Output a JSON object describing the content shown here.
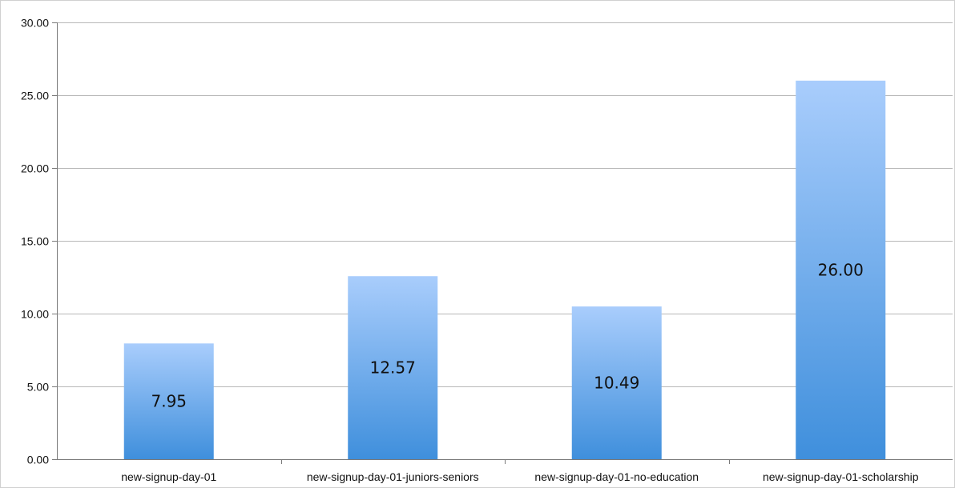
{
  "chart_data": {
    "type": "bar",
    "title": "",
    "xlabel": "",
    "ylabel": "",
    "categories": [
      "new-signup-day-01",
      "new-signup-day-01-juniors-seniors",
      "new-signup-day-01-no-education",
      "new-signup-day-01-scholarship"
    ],
    "values": [
      7.95,
      12.57,
      10.49,
      26.0
    ],
    "data_labels": [
      "7.95",
      "12.57",
      "10.49",
      "26.00"
    ],
    "ylim": [
      0,
      30
    ],
    "y_ticks": [
      0,
      5,
      10,
      15,
      20,
      25,
      30
    ],
    "y_tick_labels": [
      "0.00",
      "5.00",
      "10.00",
      "15.00",
      "20.00",
      "25.00",
      "30.00"
    ],
    "grid": true,
    "legend": "none",
    "colors": {
      "bar_top": "#a9cdfc",
      "bar_bottom": "#3f8fdc",
      "gridline": "#b8b8b8",
      "axis": "#7a7a7a"
    }
  }
}
